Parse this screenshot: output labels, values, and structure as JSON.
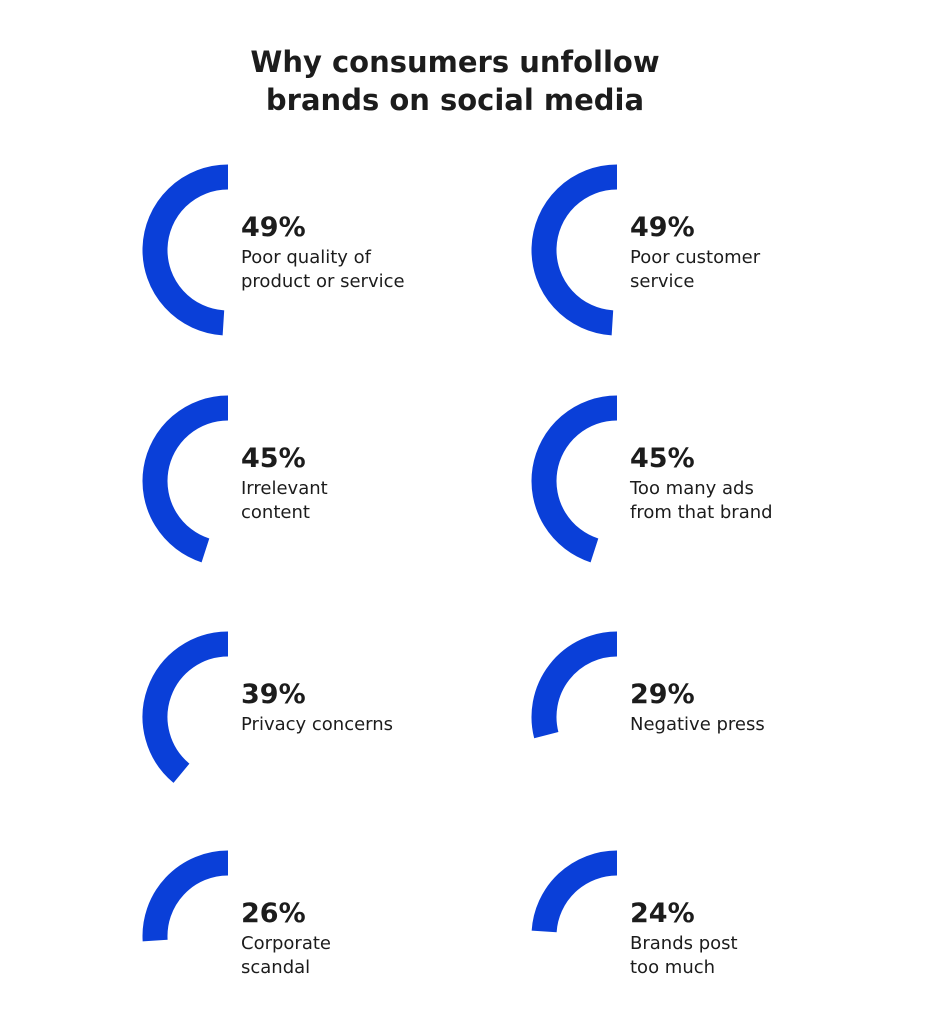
{
  "chart_data": {
    "type": "radial",
    "title": "Why consumers unfollow\nbrands on social media",
    "categories": [
      "Poor quality of\nproduct or service",
      "Poor customer\nservice",
      "Irrelevant\ncontent",
      "Too many ads\nfrom that brand",
      "Privacy concerns",
      "Negative press",
      "Corporate\nscandal",
      "Brands post\ntoo much"
    ],
    "values": [
      49,
      49,
      45,
      45,
      39,
      29,
      26,
      24
    ],
    "value_labels": [
      "49%",
      "49%",
      "45%",
      "45%",
      "39%",
      "29%",
      "26%",
      "24%"
    ],
    "color": "#0a3fd8"
  }
}
